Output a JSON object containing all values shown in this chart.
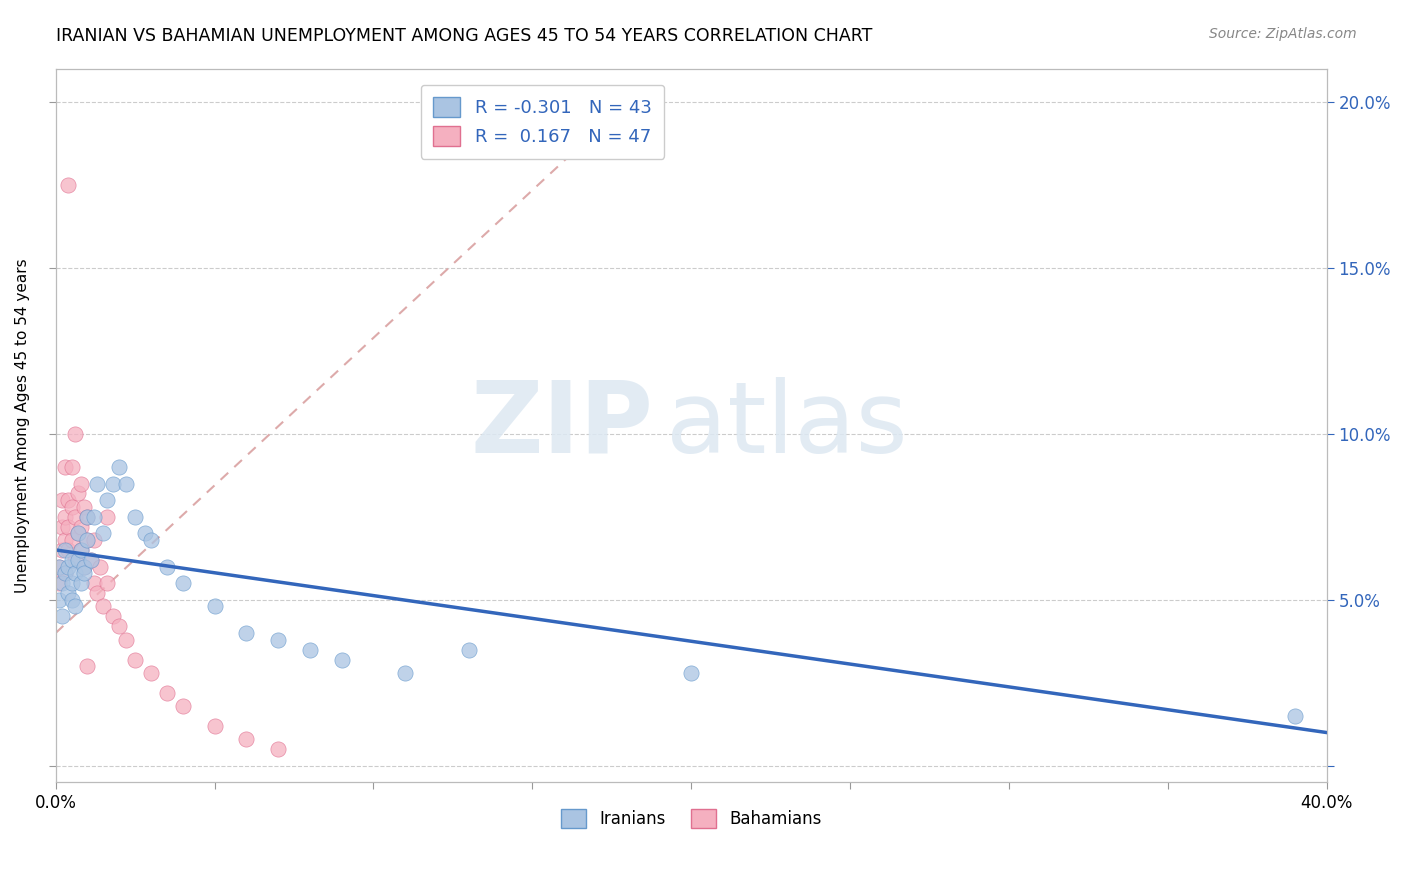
{
  "title": "IRANIAN VS BAHAMIAN UNEMPLOYMENT AMONG AGES 45 TO 54 YEARS CORRELATION CHART",
  "source": "Source: ZipAtlas.com",
  "ylabel": "Unemployment Among Ages 45 to 54 years",
  "xlim": [
    0.0,
    0.4
  ],
  "ylim": [
    -0.005,
    0.21
  ],
  "iranian_color": "#aac4e2",
  "iranian_edge_color": "#6699cc",
  "bahamian_color": "#f5b0c0",
  "bahamian_edge_color": "#e07090",
  "iranian_line_color": "#3366bb",
  "bahamian_line_color": "#dd6688",
  "legend_r_iranian": "-0.301",
  "legend_n_iranian": "43",
  "legend_r_bahamian": "0.167",
  "legend_n_bahamian": "47",
  "iranians_x": [
    0.001,
    0.001,
    0.002,
    0.002,
    0.003,
    0.003,
    0.004,
    0.004,
    0.005,
    0.005,
    0.005,
    0.006,
    0.006,
    0.007,
    0.007,
    0.008,
    0.008,
    0.009,
    0.009,
    0.01,
    0.01,
    0.011,
    0.012,
    0.013,
    0.015,
    0.016,
    0.018,
    0.02,
    0.022,
    0.025,
    0.028,
    0.03,
    0.035,
    0.04,
    0.05,
    0.06,
    0.07,
    0.08,
    0.09,
    0.11,
    0.13,
    0.2,
    0.39
  ],
  "iranians_y": [
    0.06,
    0.05,
    0.055,
    0.045,
    0.058,
    0.065,
    0.052,
    0.06,
    0.055,
    0.062,
    0.05,
    0.058,
    0.048,
    0.062,
    0.07,
    0.055,
    0.065,
    0.06,
    0.058,
    0.068,
    0.075,
    0.062,
    0.075,
    0.085,
    0.07,
    0.08,
    0.085,
    0.09,
    0.085,
    0.075,
    0.07,
    0.068,
    0.06,
    0.055,
    0.048,
    0.04,
    0.038,
    0.035,
    0.032,
    0.028,
    0.035,
    0.028,
    0.015
  ],
  "bahamians_x": [
    0.001,
    0.001,
    0.002,
    0.002,
    0.002,
    0.003,
    0.003,
    0.003,
    0.003,
    0.004,
    0.004,
    0.004,
    0.005,
    0.005,
    0.005,
    0.006,
    0.006,
    0.006,
    0.007,
    0.007,
    0.008,
    0.008,
    0.008,
    0.009,
    0.009,
    0.01,
    0.01,
    0.011,
    0.012,
    0.012,
    0.013,
    0.014,
    0.015,
    0.016,
    0.016,
    0.018,
    0.02,
    0.022,
    0.025,
    0.03,
    0.035,
    0.04,
    0.05,
    0.06,
    0.07,
    0.01,
    0.004
  ],
  "bahamians_y": [
    0.06,
    0.055,
    0.065,
    0.072,
    0.08,
    0.058,
    0.068,
    0.075,
    0.09,
    0.065,
    0.072,
    0.08,
    0.068,
    0.078,
    0.09,
    0.062,
    0.075,
    0.1,
    0.07,
    0.082,
    0.065,
    0.072,
    0.085,
    0.06,
    0.078,
    0.068,
    0.075,
    0.062,
    0.055,
    0.068,
    0.052,
    0.06,
    0.048,
    0.055,
    0.075,
    0.045,
    0.042,
    0.038,
    0.032,
    0.028,
    0.022,
    0.018,
    0.012,
    0.008,
    0.005,
    0.03,
    0.175
  ],
  "iranian_trend": [
    0.0,
    0.4,
    0.065,
    0.01
  ],
  "bahamian_trend": [
    0.0,
    0.18,
    0.04,
    0.2
  ]
}
